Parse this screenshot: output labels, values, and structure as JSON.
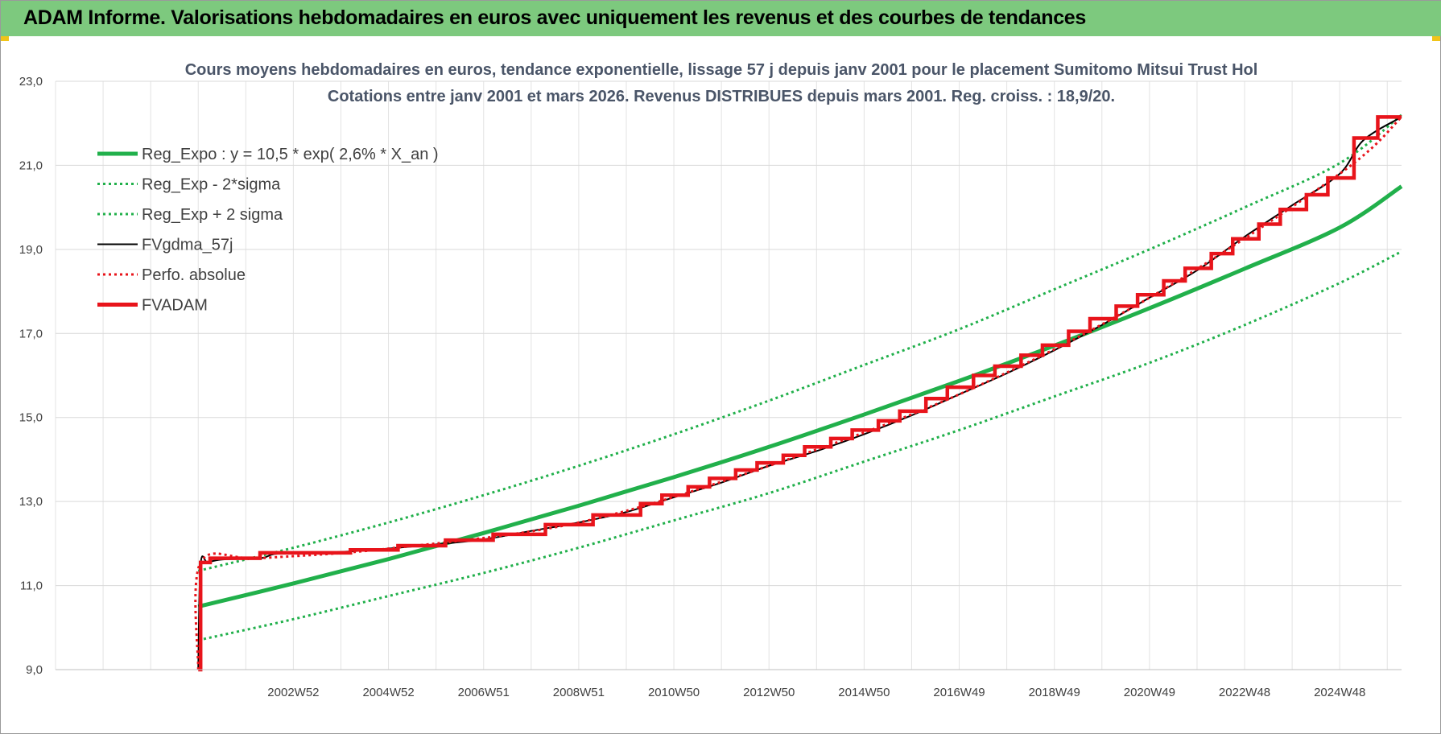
{
  "banner": {
    "title": "ADAM Informe. Valorisations hebdomadaires en euros avec uniquement les revenus et des courbes de tendances"
  },
  "colors": {
    "banner": "#7dc97e",
    "green": "#21b04b",
    "red": "#e8141b",
    "black": "#000000",
    "grid": "#d9d9d9"
  },
  "chart_data": {
    "type": "line",
    "title": "Cours moyens hebdomadaires en euros, tendance exponentielle, lissage 57 j depuis janv 2001 pour le placement Sumitomo Mitsui Trust Hol",
    "subtitle": "Cotations entre janv 2001 et mars 2026. Revenus DISTRIBUES depuis mars 2001. Reg. croiss. : 18,9/20.",
    "xlabel": "",
    "ylabel": "",
    "xlim": [
      1998.0,
      2026.3
    ],
    "ylim": [
      9.0,
      23.0
    ],
    "y_ticks": [
      "9,0",
      "11,0",
      "13,0",
      "15,0",
      "17,0",
      "19,0",
      "21,0",
      "23,0"
    ],
    "x_ticks": [
      {
        "label": "2002W52",
        "x": 2003.0
      },
      {
        "label": "2004W52",
        "x": 2005.0
      },
      {
        "label": "2006W51",
        "x": 2007.0
      },
      {
        "label": "2008W51",
        "x": 2009.0
      },
      {
        "label": "2010W50",
        "x": 2011.0
      },
      {
        "label": "2012W50",
        "x": 2013.0
      },
      {
        "label": "2014W50",
        "x": 2015.0
      },
      {
        "label": "2016W49",
        "x": 2017.0
      },
      {
        "label": "2018W49",
        "x": 2019.0
      },
      {
        "label": "2020W49",
        "x": 2021.0
      },
      {
        "label": "2022W48",
        "x": 2023.0
      },
      {
        "label": "2024W48",
        "x": 2025.0
      }
    ],
    "grid": true,
    "legend_position": "top-left",
    "series": [
      {
        "name": "Reg_Expo : y = 10,5 * exp( 2,6% *  X_an )",
        "color": "#21b04b",
        "style": "solid-thick",
        "x": [
          2001.0,
          2003.0,
          2005.0,
          2007.0,
          2009.0,
          2011.0,
          2013.0,
          2015.0,
          2017.0,
          2019.0,
          2021.0,
          2023.0,
          2025.0,
          2026.3
        ],
        "y": [
          10.5,
          11.05,
          11.63,
          12.25,
          12.9,
          13.58,
          14.3,
          15.07,
          15.87,
          16.71,
          17.6,
          18.54,
          19.52,
          20.5
        ]
      },
      {
        "name": "Reg_Exp - 2*sigma",
        "color": "#21b04b",
        "style": "dotted",
        "x": [
          2001.0,
          2003.0,
          2005.0,
          2007.0,
          2009.0,
          2011.0,
          2013.0,
          2015.0,
          2017.0,
          2019.0,
          2021.0,
          2023.0,
          2025.0,
          2026.3
        ],
        "y": [
          9.7,
          10.2,
          10.75,
          11.3,
          11.9,
          12.55,
          13.2,
          13.95,
          14.7,
          15.5,
          16.3,
          17.2,
          18.2,
          18.95
        ]
      },
      {
        "name": "Reg_Exp + 2 sigma",
        "color": "#21b04b",
        "style": "dotted",
        "x": [
          2001.0,
          2003.0,
          2005.0,
          2007.0,
          2009.0,
          2011.0,
          2013.0,
          2015.0,
          2017.0,
          2019.0,
          2021.0,
          2023.0,
          2025.0,
          2026.3
        ],
        "y": [
          11.35,
          11.9,
          12.5,
          13.15,
          13.85,
          14.6,
          15.4,
          16.25,
          17.1,
          18.05,
          19.0,
          20.0,
          21.05,
          22.2
        ]
      },
      {
        "name": "FVgdma_57j",
        "color": "#000000",
        "style": "solid",
        "x": [
          2001.0,
          2001.05,
          2001.2,
          2001.5,
          2002.3,
          2002.6,
          2003.2,
          2004.0,
          2005.0,
          2006.0,
          2007.0,
          2008.0,
          2009.0,
          2010.0,
          2011.0,
          2012.0,
          2013.0,
          2014.0,
          2015.0,
          2016.0,
          2017.0,
          2018.0,
          2019.0,
          2020.0,
          2021.0,
          2022.0,
          2023.0,
          2024.0,
          2025.0,
          2025.5,
          2026.3
        ],
        "y": [
          9.0,
          11.5,
          11.55,
          11.62,
          11.65,
          11.75,
          11.78,
          11.8,
          11.88,
          11.98,
          12.1,
          12.3,
          12.5,
          12.75,
          13.1,
          13.45,
          13.85,
          14.2,
          14.6,
          15.05,
          15.55,
          16.05,
          16.6,
          17.2,
          17.85,
          18.5,
          19.3,
          20.05,
          20.8,
          21.6,
          22.15
        ]
      },
      {
        "name": "Perfo. absolue",
        "color": "#e8141b",
        "style": "dotted",
        "x": [
          2001.0,
          2001.05,
          2002.3,
          2005.0,
          2009.0,
          2013.0,
          2017.0,
          2021.0,
          2025.0,
          2026.3
        ],
        "y": [
          9.0,
          11.55,
          11.65,
          11.88,
          12.5,
          13.85,
          15.55,
          17.85,
          20.8,
          22.15
        ]
      },
      {
        "name": "FVADAM",
        "color": "#e8141b",
        "style": "step-thick",
        "x": [
          2001.0,
          2001.05,
          2001.25,
          2002.3,
          2004.2,
          2005.2,
          2006.2,
          2007.2,
          2008.3,
          2009.3,
          2010.3,
          2010.75,
          2011.3,
          2011.75,
          2012.3,
          2012.75,
          2013.3,
          2013.75,
          2014.3,
          2014.75,
          2015.3,
          2015.75,
          2016.3,
          2016.75,
          2017.3,
          2017.75,
          2018.3,
          2018.75,
          2019.3,
          2019.75,
          2020.3,
          2020.75,
          2021.3,
          2021.75,
          2022.3,
          2022.75,
          2023.3,
          2023.75,
          2024.3,
          2024.75,
          2025.3,
          2025.8
        ],
        "y": [
          9.0,
          11.55,
          11.65,
          11.78,
          11.85,
          11.95,
          12.08,
          12.22,
          12.45,
          12.68,
          12.95,
          13.15,
          13.35,
          13.55,
          13.75,
          13.92,
          14.1,
          14.3,
          14.5,
          14.7,
          14.92,
          15.15,
          15.45,
          15.72,
          16.0,
          16.22,
          16.48,
          16.72,
          17.05,
          17.35,
          17.65,
          17.92,
          18.25,
          18.55,
          18.9,
          19.25,
          19.6,
          19.95,
          20.3,
          20.7,
          21.65,
          22.15
        ]
      }
    ]
  }
}
